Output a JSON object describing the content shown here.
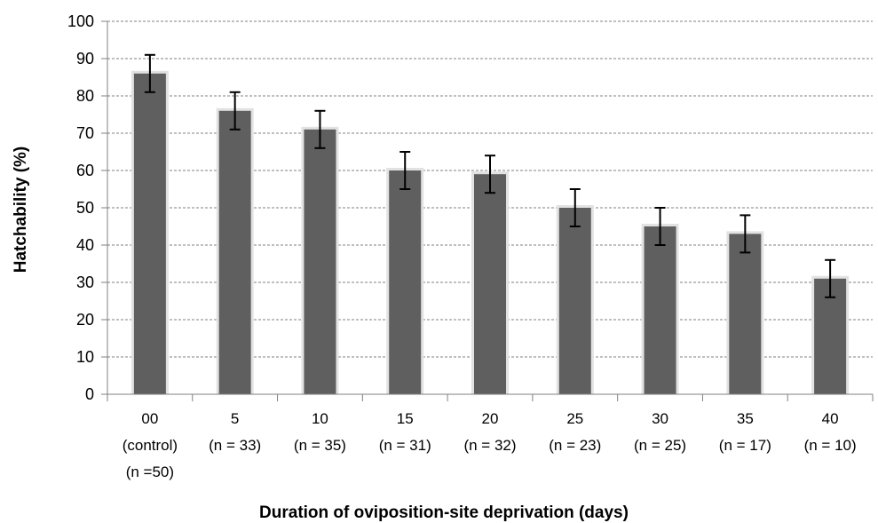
{
  "chart_data": {
    "type": "bar",
    "title": "",
    "xlabel": "Duration of oviposition-site  deprivation (days)",
    "ylabel": "Hatchability (%)",
    "ylim": [
      0,
      100
    ],
    "yticks": [
      0,
      10,
      20,
      30,
      40,
      50,
      60,
      70,
      80,
      90,
      100
    ],
    "grid": true,
    "categories": [
      [
        "00",
        "(control)",
        "(n =50)"
      ],
      [
        "5",
        "(n = 33)"
      ],
      [
        "10",
        "(n = 35)"
      ],
      [
        "15",
        "(n = 31)"
      ],
      [
        "20",
        "(n = 32)"
      ],
      [
        "25",
        "(n = 23)"
      ],
      [
        "30",
        "(n = 25)"
      ],
      [
        "35",
        "(n = 17)"
      ],
      [
        "40",
        "(n = 10)"
      ]
    ],
    "values": [
      86,
      76,
      71,
      60,
      59,
      50,
      45,
      43,
      31
    ],
    "error": [
      5,
      5,
      5,
      5,
      5,
      5,
      5,
      5,
      5
    ],
    "colors": {
      "bar": "#5f5f5f",
      "bar_glow": "#e2e2e2",
      "grid": "#808080",
      "error_bar": "#000000"
    }
  }
}
